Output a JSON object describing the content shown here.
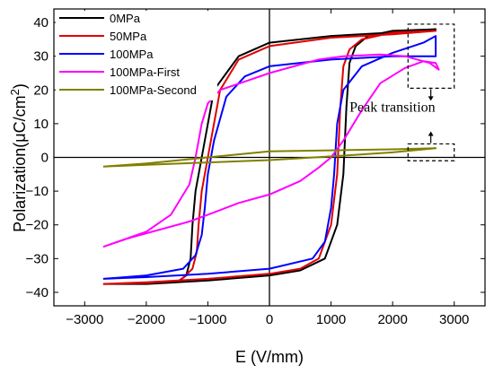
{
  "chart_data": {
    "type": "line",
    "title": "",
    "xlabel": "E (V/mm)",
    "ylabel_main": "Polarization(μC/cm",
    "ylabel_sup": "2",
    "ylabel_close": ")",
    "xlim": [
      -3500,
      3500
    ],
    "ylim": [
      -44,
      44
    ],
    "xticks": [
      -3000,
      -2000,
      -1000,
      0,
      1000,
      2000,
      3000
    ],
    "yticks": [
      -40,
      -30,
      -20,
      -10,
      0,
      10,
      20,
      30,
      40
    ],
    "xtick_labels": [
      "−3000",
      "−2000",
      "−1000",
      "0",
      "1000",
      "2000",
      "3000"
    ],
    "ytick_labels": [
      "−40",
      "−30",
      "−20",
      "−10",
      "0",
      "10",
      "20",
      "30",
      "40"
    ],
    "grid": false,
    "legend_position": "top-left",
    "series": [
      {
        "name": "0MPa",
        "color": "#000000",
        "x": [
          -2700,
          -2000,
          -1500,
          -1350,
          -1280,
          -1250,
          -1200,
          -1100,
          -900,
          -500,
          0,
          1000,
          2000,
          2700,
          2700,
          2000,
          1600,
          1400,
          1300,
          1250,
          1200,
          1100,
          900,
          500,
          0,
          -1000,
          -2000,
          -2700
        ],
        "y": [
          -37.5,
          -37.5,
          -37,
          -35,
          -30,
          -20,
          -10,
          0,
          20,
          30,
          34,
          36,
          37,
          38,
          38,
          37.5,
          36,
          33,
          28,
          15,
          -5,
          -20,
          -30,
          -33.5,
          -35,
          -36.5,
          -37.5,
          -37.5
        ]
      },
      {
        "name": "50MPa",
        "color": "#e00000",
        "x": [
          -2700,
          -2000,
          -1450,
          -1250,
          -1180,
          -1150,
          -1100,
          -1000,
          -800,
          -500,
          0,
          1000,
          2000,
          2700,
          2700,
          2000,
          1500,
          1300,
          1200,
          1150,
          1100,
          1000,
          800,
          500,
          0,
          -1000,
          -2000,
          -2700
        ],
        "y": [
          -37.5,
          -37.2,
          -36.5,
          -33,
          -28,
          -20,
          -10,
          0,
          20,
          29,
          33,
          35.5,
          36.5,
          37.5,
          37.5,
          37,
          35,
          32,
          27,
          15,
          -5,
          -20,
          -30,
          -33,
          -34.5,
          -36,
          -37,
          -37.5
        ]
      },
      {
        "name": "100MPa",
        "color": "#0000ff",
        "x": [
          -2700,
          -2000,
          -1400,
          -1200,
          -1100,
          -1050,
          -1000,
          -900,
          -700,
          -400,
          0,
          1000,
          2000,
          2700,
          2700,
          2500,
          2000,
          1500,
          1200,
          1100,
          1050,
          1000,
          900,
          700,
          0,
          -1000,
          -2000,
          -2700
        ],
        "y": [
          -36,
          -35,
          -33,
          -29,
          -23,
          -15,
          -5,
          5,
          18,
          24,
          27,
          29,
          30,
          30,
          36,
          34,
          31,
          27,
          20,
          10,
          -5,
          -15,
          -25,
          -30,
          -33,
          -34.5,
          -35.5,
          -36
        ]
      },
      {
        "name": "100MPa-First",
        "color": "#ff00ff",
        "x": [
          -2700,
          -2300,
          -1800,
          -1300,
          -1000,
          -500,
          0,
          500,
          800,
          1000,
          1200,
          1500,
          1800,
          2200,
          2500,
          2700,
          2750,
          2600,
          2200,
          1800,
          1200,
          800,
          400,
          0,
          -400,
          -800,
          -1000,
          -1100,
          -1200,
          -1300,
          -1600,
          -2000,
          -2700
        ],
        "y": [
          -26.5,
          -24,
          -21.5,
          -19,
          -17,
          -13.5,
          -11,
          -7,
          -3,
          0,
          5,
          14,
          22,
          26.5,
          28.5,
          28,
          26,
          28,
          30,
          30.5,
          30,
          29,
          27,
          25,
          22.5,
          20,
          16,
          10,
          0,
          -8,
          -17,
          -22,
          -26.5
        ]
      },
      {
        "name": "100MPa-Second",
        "color": "#808000",
        "x": [
          -2700,
          -2000,
          -1000,
          0,
          1000,
          2000,
          2700,
          2000,
          1000,
          0,
          -1000,
          -2000,
          -2700
        ],
        "y": [
          -2.7,
          -2.2,
          -1.5,
          -0.8,
          0.3,
          1.5,
          2.7,
          2.4,
          2.1,
          1.8,
          0,
          -1.8,
          -2.7
        ]
      }
    ],
    "annotation": {
      "text": "Peak transition"
    }
  }
}
